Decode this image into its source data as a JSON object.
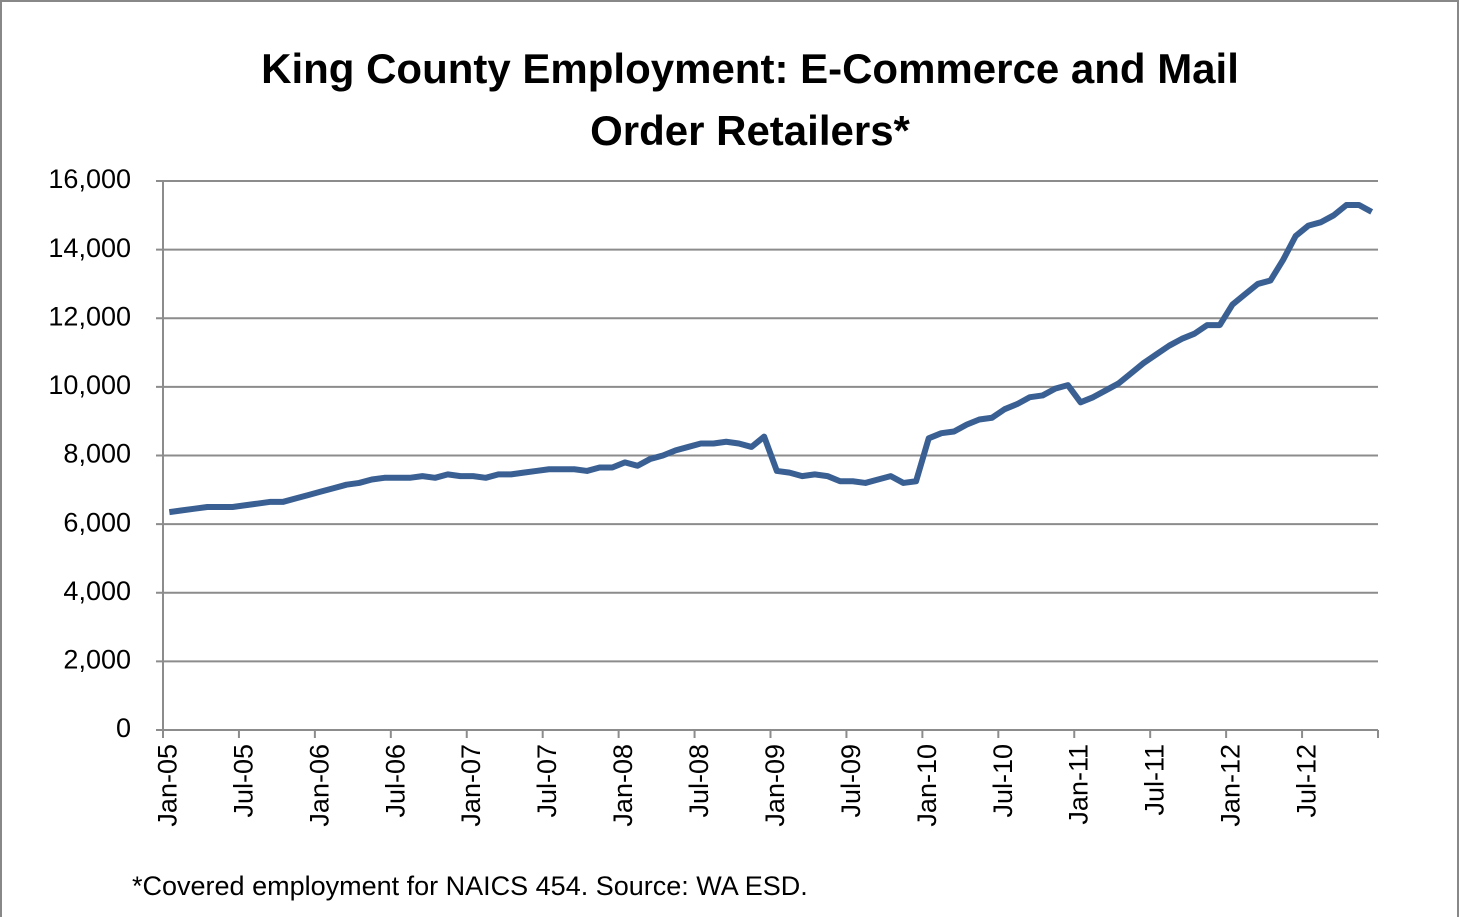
{
  "chart_data": {
    "type": "line",
    "title": "King County Employment: E-Commerce and Mail Order Retailers*",
    "footnote": "*Covered employment for NAICS 454.  Source: WA  ESD.",
    "categories": [
      "Jan-05",
      null,
      null,
      null,
      null,
      null,
      "Jul-05",
      null,
      null,
      null,
      null,
      null,
      "Jan-06",
      null,
      null,
      null,
      null,
      null,
      "Jul-06",
      null,
      null,
      null,
      null,
      null,
      "Jan-07",
      null,
      null,
      null,
      null,
      null,
      "Jul-07",
      null,
      null,
      null,
      null,
      null,
      "Jan-08",
      null,
      null,
      null,
      null,
      null,
      "Jul-08",
      null,
      null,
      null,
      null,
      null,
      "Jan-09",
      null,
      null,
      null,
      null,
      null,
      "Jul-09",
      null,
      null,
      null,
      null,
      null,
      "Jan-10",
      null,
      null,
      null,
      null,
      null,
      "Jul-10",
      null,
      null,
      null,
      null,
      null,
      "Jan-11",
      null,
      null,
      null,
      null,
      null,
      "Jul-11",
      null,
      null,
      null,
      null,
      null,
      "Jan-12",
      null,
      null,
      null,
      null,
      null,
      "Jul-12",
      null,
      null,
      null,
      null,
      null
    ],
    "series": [
      {
        "name": "Employment",
        "color": "#3a6093",
        "values": [
          6350,
          6400,
          6450,
          6500,
          6500,
          6500,
          6550,
          6600,
          6650,
          6650,
          6750,
          6850,
          6950,
          7050,
          7150,
          7200,
          7300,
          7350,
          7350,
          7350,
          7400,
          7350,
          7450,
          7400,
          7400,
          7350,
          7450,
          7450,
          7500,
          7550,
          7600,
          7600,
          7600,
          7550,
          7650,
          7650,
          7800,
          7700,
          7900,
          8000,
          8150,
          8250,
          8350,
          8350,
          8400,
          8350,
          8250,
          8550,
          7550,
          7500,
          7400,
          7450,
          7400,
          7250,
          7250,
          7200,
          7300,
          7400,
          7200,
          7250,
          8500,
          8650,
          8700,
          8900,
          9050,
          9100,
          9350,
          9500,
          9700,
          9750,
          9950,
          10050,
          9550,
          9700,
          9900,
          10100,
          10400,
          10700,
          10950,
          11200,
          11400,
          11550,
          11800,
          11800,
          12400,
          12700,
          13000,
          13100,
          13700,
          14400,
          14700,
          14800,
          15000,
          15300,
          15300,
          15100
        ]
      }
    ],
    "ylim": [
      0,
      16000
    ],
    "yticks": [
      0,
      {
        "value": 2000,
        "label": "2,000"
      },
      {
        "value": 4000,
        "label": "4,000"
      },
      {
        "value": 6000,
        "label": "6,000"
      },
      {
        "value": 8000,
        "label": "8,000"
      },
      {
        "value": 10000,
        "label": "10,000"
      },
      {
        "value": 12000,
        "label": "12,000"
      },
      {
        "value": 14000,
        "label": "14,000"
      },
      {
        "value": 16000,
        "label": "16,000"
      }
    ],
    "grid": true
  }
}
